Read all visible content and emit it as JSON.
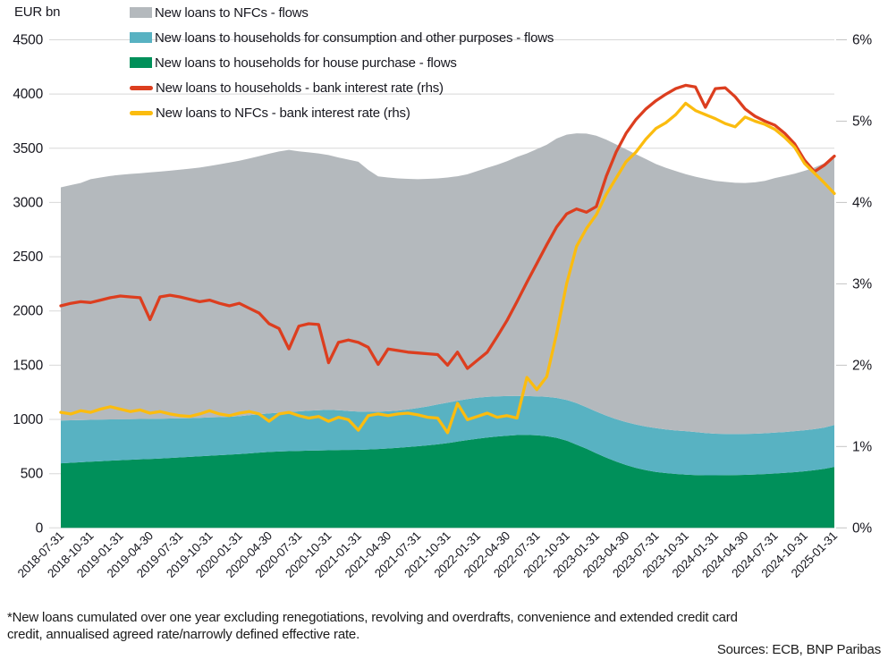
{
  "chart_data": {
    "type": "combo",
    "title": "",
    "x": {
      "frequency": "monthly",
      "start": "2018-07-31",
      "end": "2025-01-31",
      "count": 79,
      "tick_every": 3,
      "tick_labels": [
        "2018-07-31",
        "2018-10-31",
        "2019-01-31",
        "2019-04-30",
        "2019-07-31",
        "2019-10-31",
        "2020-01-31",
        "2020-04-30",
        "2020-07-31",
        "2020-10-31",
        "2021-01-31",
        "2021-04-30",
        "2021-07-31",
        "2021-10-31",
        "2022-01-31",
        "2022-04-30",
        "2022-07-31",
        "2022-10-31",
        "2023-01-31",
        "2023-04-30",
        "2023-07-31",
        "2023-10-31",
        "2024-01-31",
        "2024-04-30",
        "2024-07-31",
        "2024-10-31",
        "2025-01-31"
      ]
    },
    "axes": {
      "left": {
        "title": "EUR bn",
        "min": 0,
        "max": 4500,
        "tick_labels": [
          "0",
          "500",
          "1000",
          "1500",
          "2000",
          "2500",
          "3000",
          "3500",
          "4000",
          "4500"
        ]
      },
      "right": {
        "min": 0,
        "max": 6,
        "tick_labels": [
          "0%",
          "1%",
          "2%",
          "3%",
          "4%",
          "5%",
          "6%"
        ]
      }
    },
    "grid": true,
    "stack_note": "area series are stacked bottom-to-top in listed order; line series plot on the right axis",
    "series": [
      {
        "id": "house-purchase-flows",
        "name": "New loans to households for house purchase - flows",
        "type": "area",
        "axis": "left",
        "color": "#00905a",
        "values": [
          595,
          600,
          605,
          610,
          615,
          620,
          624,
          628,
          632,
          636,
          640,
          645,
          650,
          655,
          660,
          665,
          670,
          675,
          680,
          687,
          694,
          700,
          704,
          707,
          710,
          712,
          714,
          716,
          718,
          719,
          720,
          723,
          727,
          732,
          738,
          745,
          753,
          761,
          770,
          782,
          796,
          810,
          822,
          833,
          843,
          850,
          856,
          857,
          853,
          845,
          830,
          805,
          768,
          730,
          688,
          648,
          612,
          580,
          553,
          532,
          516,
          505,
          497,
          491,
          487,
          485,
          485,
          486,
          487,
          489,
          492,
          496,
          501,
          507,
          514,
          522,
          532,
          545,
          562
        ]
      },
      {
        "id": "consumption-flows",
        "name": "New loans to households for consumption and other purposes - flows",
        "type": "area",
        "axis": "left",
        "color": "#58b2c2",
        "values": [
          395,
          392,
          389,
          386,
          383,
          380,
          377,
          374,
          372,
          369,
          367,
          363,
          360,
          357,
          355,
          353,
          351,
          350,
          350,
          353,
          354,
          355,
          358,
          361,
          364,
          368,
          371,
          372,
          367,
          359,
          352,
          347,
          344,
          343,
          344,
          347,
          352,
          359,
          368,
          373,
          376,
          378,
          378,
          375,
          370,
          365,
          360,
          358,
          360,
          363,
          368,
          375,
          382,
          382,
          384,
          387,
          390,
          395,
          399,
          402,
          404,
          403,
          401,
          401,
          397,
          390,
          383,
          380,
          378,
          377,
          376,
          376,
          377,
          377,
          378,
          378,
          378,
          380,
          386
        ]
      },
      {
        "id": "nfc-flows",
        "name": "New loans to NFCs - flows",
        "type": "area",
        "axis": "left",
        "color": "#b4b9bd",
        "values": [
          2150,
          2168,
          2186,
          2219,
          2232,
          2245,
          2254,
          2261,
          2266,
          2273,
          2278,
          2285,
          2292,
          2300,
          2307,
          2319,
          2331,
          2343,
          2355,
          2365,
          2379,
          2395,
          2408,
          2417,
          2398,
          2382,
          2367,
          2349,
          2330,
          2317,
          2303,
          2230,
          2169,
          2155,
          2140,
          2126,
          2110,
          2098,
          2084,
          2075,
          2070,
          2072,
          2090,
          2112,
          2135,
          2165,
          2204,
          2237,
          2279,
          2324,
          2392,
          2445,
          2488,
          2523,
          2543,
          2545,
          2533,
          2515,
          2493,
          2466,
          2435,
          2412,
          2392,
          2370,
          2354,
          2343,
          2332,
          2324,
          2317,
          2314,
          2318,
          2328,
          2347,
          2361,
          2373,
          2392,
          2412,
          2437,
          2457
        ]
      },
      {
        "id": "households-rate",
        "name": "New loans to households - bank interest rate (rhs)",
        "type": "line",
        "axis": "right",
        "color": "#dc3e1f",
        "values": [
          2.73,
          2.76,
          2.78,
          2.77,
          2.8,
          2.83,
          2.85,
          2.84,
          2.83,
          2.56,
          2.84,
          2.86,
          2.84,
          2.81,
          2.78,
          2.8,
          2.76,
          2.73,
          2.76,
          2.7,
          2.64,
          2.51,
          2.45,
          2.2,
          2.48,
          2.51,
          2.5,
          2.03,
          2.28,
          2.31,
          2.28,
          2.22,
          2.01,
          2.2,
          2.18,
          2.16,
          2.15,
          2.14,
          2.13,
          2.0,
          2.16,
          1.96,
          2.06,
          2.16,
          2.35,
          2.55,
          2.78,
          3.02,
          3.25,
          3.48,
          3.7,
          3.86,
          3.92,
          3.88,
          3.95,
          4.32,
          4.62,
          4.85,
          5.02,
          5.15,
          5.25,
          5.33,
          5.4,
          5.44,
          5.42,
          5.17,
          5.4,
          5.41,
          5.3,
          5.15,
          5.06,
          5.0,
          4.95,
          4.85,
          4.72,
          4.52,
          4.38,
          4.46,
          4.57
        ]
      },
      {
        "id": "nfc-rate",
        "name": "New loans to NFCs - bank interest rate (rhs)",
        "type": "line",
        "axis": "right",
        "color": "#fbbc0f",
        "values": [
          1.42,
          1.4,
          1.44,
          1.42,
          1.46,
          1.49,
          1.46,
          1.43,
          1.45,
          1.41,
          1.43,
          1.4,
          1.38,
          1.37,
          1.4,
          1.44,
          1.4,
          1.38,
          1.41,
          1.43,
          1.4,
          1.31,
          1.4,
          1.42,
          1.38,
          1.35,
          1.37,
          1.31,
          1.36,
          1.33,
          1.2,
          1.38,
          1.4,
          1.38,
          1.4,
          1.41,
          1.39,
          1.36,
          1.35,
          1.17,
          1.53,
          1.33,
          1.37,
          1.41,
          1.36,
          1.38,
          1.35,
          1.85,
          1.7,
          1.86,
          2.39,
          3.0,
          3.46,
          3.68,
          3.85,
          4.1,
          4.3,
          4.5,
          4.62,
          4.78,
          4.91,
          4.98,
          5.08,
          5.22,
          5.13,
          5.08,
          5.03,
          4.97,
          4.93,
          5.05,
          5.0,
          4.96,
          4.9,
          4.8,
          4.68,
          4.48,
          4.36,
          4.24,
          4.11
        ]
      }
    ]
  },
  "legend": {
    "position": "top-left",
    "items": [
      {
        "label": "New loans to NFCs - flows",
        "series_index": 2
      },
      {
        "label": "New loans to households for consumption and other purposes - flows",
        "series_index": 1
      },
      {
        "label": "New loans to households for house purchase - flows",
        "series_index": 0
      },
      {
        "label": "New loans to households - bank interest rate (rhs)",
        "series_index": 3
      },
      {
        "label": "New loans to NFCs - bank interest rate (rhs)",
        "series_index": 4
      }
    ]
  },
  "footnote": {
    "line1": "*New loans cumulated over one year excluding renegotiations, revolving and overdrafts, convenience and extended credit card",
    "line2": "credit, annualised agreed rate/narrowly defined effective rate."
  },
  "sources": "Sources: ECB, BNP Paribas"
}
